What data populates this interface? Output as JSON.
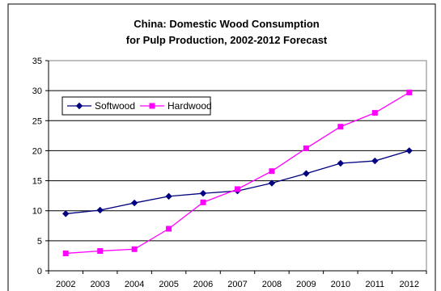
{
  "chart_data": {
    "type": "line",
    "title": "China: Domestic Wood Consumption",
    "subtitle": "for Pulp Production, 2002-2012 Forecast",
    "xlabel": "",
    "ylabel": "",
    "categories": [
      "2002",
      "2003",
      "2004",
      "2005",
      "2006",
      "2007",
      "2008",
      "2009",
      "2010",
      "2011",
      "2012"
    ],
    "ylim": [
      0,
      35
    ],
    "yticks": [
      "0",
      "5",
      "10",
      "15",
      "20",
      "25",
      "30",
      "35"
    ],
    "grid": true,
    "legend_position": "top-left",
    "series": [
      {
        "name": "Softwood",
        "color": "#000080",
        "marker": "diamond",
        "values": [
          9.5,
          10.1,
          11.3,
          12.4,
          12.9,
          13.3,
          14.6,
          16.2,
          17.9,
          18.3,
          20.0
        ]
      },
      {
        "name": "Hardwood",
        "color": "#ff00ff",
        "marker": "square",
        "values": [
          2.9,
          3.3,
          3.6,
          7.0,
          11.4,
          13.6,
          16.6,
          20.4,
          24.0,
          26.3,
          29.7
        ]
      }
    ]
  }
}
